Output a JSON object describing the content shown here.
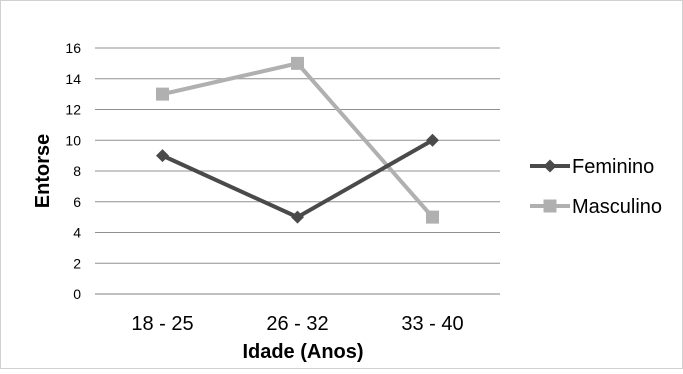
{
  "chart_data": {
    "type": "line",
    "title": "",
    "xlabel": "Idade (Anos)",
    "ylabel": "Entorse",
    "categories": [
      "18 - 25",
      "26 - 32",
      "33 - 40"
    ],
    "ylim": [
      0,
      16
    ],
    "yticks": [
      "0",
      "2",
      "4",
      "6",
      "8",
      "10",
      "12",
      "14",
      "16"
    ],
    "grid": true,
    "legend_position": "right",
    "series": [
      {
        "name": "Feminino",
        "values": [
          9,
          5,
          10
        ],
        "color": "#4a4a4a",
        "marker": "diamond"
      },
      {
        "name": "Masculino",
        "values": [
          13,
          15,
          5
        ],
        "color": "#b0b0b0",
        "marker": "square"
      }
    ]
  }
}
